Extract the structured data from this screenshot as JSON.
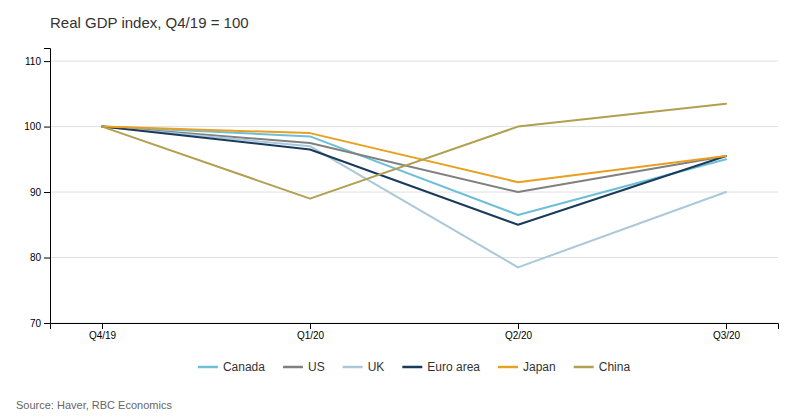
{
  "chart_data": {
    "type": "line",
    "title": "Real GDP index, Q4/19 = 100",
    "source": "Source: Haver, RBC Economics",
    "categories": [
      "Q4/19",
      "Q1/20",
      "Q2/20",
      "Q3/20"
    ],
    "series": [
      {
        "name": "Canada",
        "color": "#6dbed8",
        "values": [
          100,
          98.5,
          86.5,
          95.0
        ]
      },
      {
        "name": "US",
        "color": "#808080",
        "values": [
          100,
          97.5,
          90.0,
          95.5
        ]
      },
      {
        "name": "UK",
        "color": "#aac8d8",
        "values": [
          100,
          97.0,
          78.5,
          90.0
        ]
      },
      {
        "name": "Euro area",
        "color": "#1a3a5c",
        "values": [
          100,
          96.5,
          85.0,
          95.5
        ]
      },
      {
        "name": "Japan",
        "color": "#e8a020",
        "values": [
          100,
          99.0,
          91.5,
          95.5
        ]
      },
      {
        "name": "China",
        "color": "#b0a050",
        "values": [
          100,
          89.0,
          100.0,
          103.5
        ]
      }
    ],
    "ylim": [
      70,
      112
    ],
    "yticks": [
      70,
      80,
      90,
      100,
      110
    ],
    "grid": true,
    "legend": "bottom"
  }
}
